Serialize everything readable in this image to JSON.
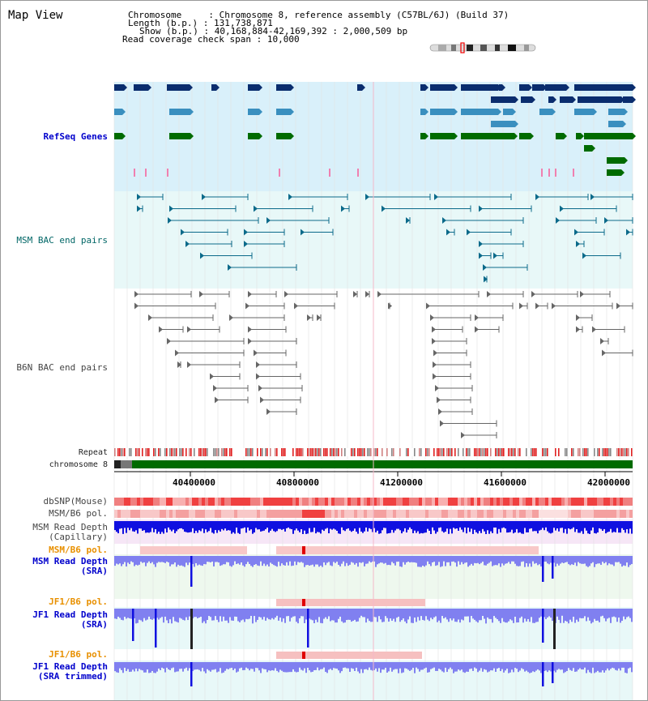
{
  "page_title": "Map View",
  "info": {
    "chromosome_label": "Chromosome",
    "chromosome_value": "Chromosome 8, reference assembly (C57BL/6J) (Build 37)",
    "length_label": "Length (b.p.)",
    "length_value": "131,738,871",
    "show_label": "Show (b.p.)",
    "show_value": "40,168,884-42,169,392 : 2,000,509 bp",
    "span_label": "Read coverage check span",
    "span_value": "10,000"
  },
  "tracks": {
    "refseq": "RefSeq Genes",
    "msm_bac": "MSM BAC end pairs",
    "b6n_bac": "B6N BAC end pairs",
    "repeat": "Repeat",
    "chromosome": "chromosome 8",
    "dbsnp": "dbSNP(Mouse)",
    "msm_b6_pol_1": "MSM/B6 pol.",
    "msm_depth_cap_1": "MSM Read Depth",
    "msm_depth_cap_2": "(Capillary)",
    "msm_b6_pol_2": "MSM/B6 pol.",
    "msm_depth_sra_1": "MSM Read Depth",
    "msm_depth_sra_2": "(SRA)",
    "jf1_b6_pol_1": "JF1/B6 pol.",
    "jf1_depth_sra_1": "JF1 Read Depth",
    "jf1_depth_sra_2": "(SRA)",
    "jf1_b6_pol_2": "JF1/B6 pol.",
    "jf1_depth_trim_1": "JF1 Read Depth",
    "jf1_depth_trim_2": "(SRA trimmed)"
  },
  "axis_ticks": [
    "40400000",
    "40800000",
    "41200000",
    "41600000",
    "42000000"
  ],
  "colors": {
    "refseq_bg": "#d9f0fa",
    "bac_bg": "#e8f8f8",
    "gene_dark": "#0a2d6e",
    "gene_mid": "#3a8fbf",
    "gene_green": "#006b00",
    "msm_line": "#0b6a8a",
    "b6n_line": "#666666",
    "depth_blue": "#1010e0",
    "depth_light": "#8080f0"
  }
}
